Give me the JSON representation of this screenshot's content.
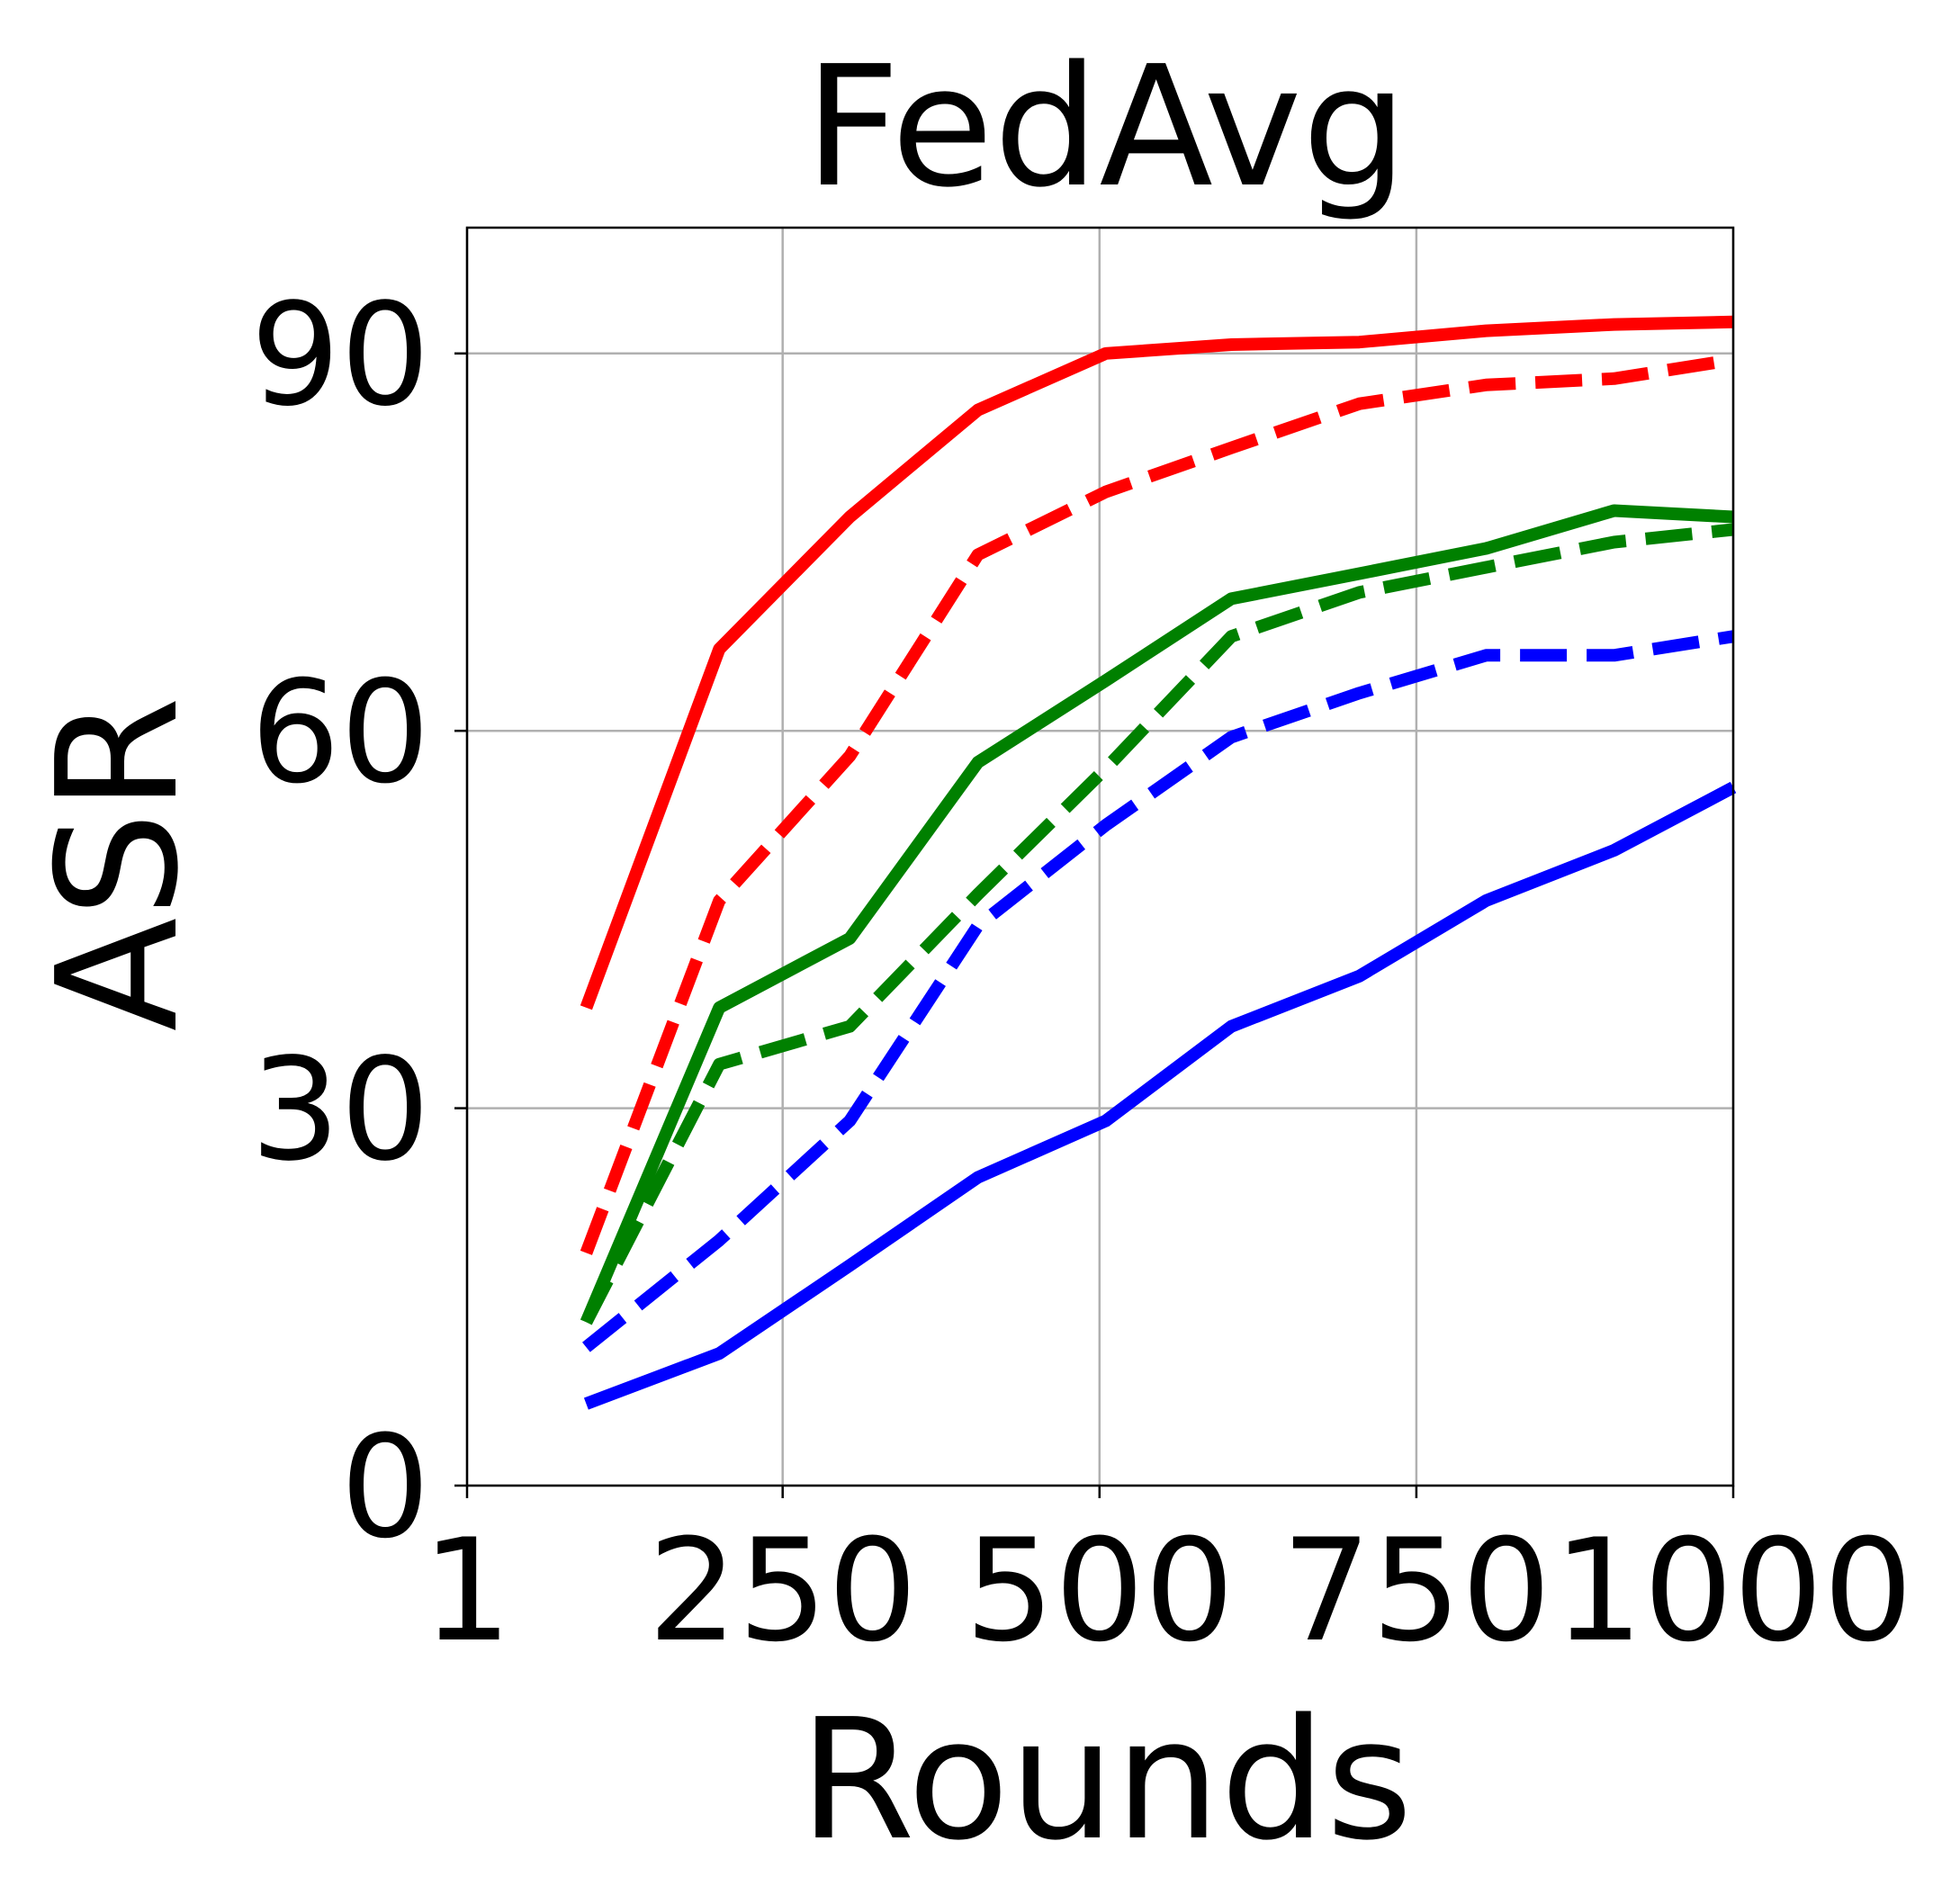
{
  "chart_data": {
    "type": "line",
    "title": "FedAvg",
    "xlabel": "Rounds",
    "ylabel": "ASR",
    "xlim": [
      1,
      1000
    ],
    "ylim": [
      0,
      100
    ],
    "xticks": [
      1,
      250,
      500,
      750,
      1000
    ],
    "xtick_labels": [
      "1",
      "250",
      "500",
      "750",
      "1000"
    ],
    "yticks": [
      0,
      30,
      60,
      90
    ],
    "ytick_labels": [
      "0",
      "30",
      "60",
      "90"
    ],
    "grid": true,
    "legend": "none",
    "x": [
      95,
      200,
      303,
      404,
      505,
      604,
      705,
      805,
      906,
      1000
    ],
    "series": [
      {
        "color": "#ff0000",
        "style": "solid",
        "values": [
          38.0,
          66.5,
          77.0,
          85.5,
          90.0,
          90.7,
          90.9,
          91.8,
          92.3,
          92.5
        ]
      },
      {
        "color": "#ff0000",
        "style": "dashed",
        "values": [
          18.5,
          46.5,
          58.0,
          74.0,
          79.0,
          82.5,
          86.0,
          87.5,
          88.0,
          89.5
        ]
      },
      {
        "color": "#008000",
        "style": "solid",
        "values": [
          13.0,
          38.0,
          43.5,
          57.5,
          64.0,
          70.5,
          72.5,
          74.5,
          77.5,
          77.0
        ]
      },
      {
        "color": "#008000",
        "style": "dashed",
        "values": [
          13.0,
          33.5,
          36.5,
          47.0,
          57.0,
          67.5,
          71.0,
          73.0,
          75.0,
          76.0
        ]
      },
      {
        "color": "#0000ff",
        "style": "dashed",
        "values": [
          11.0,
          19.5,
          29.0,
          44.5,
          52.5,
          59.5,
          63.0,
          66.0,
          66.0,
          67.5
        ]
      },
      {
        "color": "#0000ff",
        "style": "solid",
        "values": [
          6.5,
          10.5,
          17.5,
          24.5,
          29.0,
          36.5,
          40.5,
          46.5,
          50.5,
          55.5
        ]
      }
    ]
  }
}
